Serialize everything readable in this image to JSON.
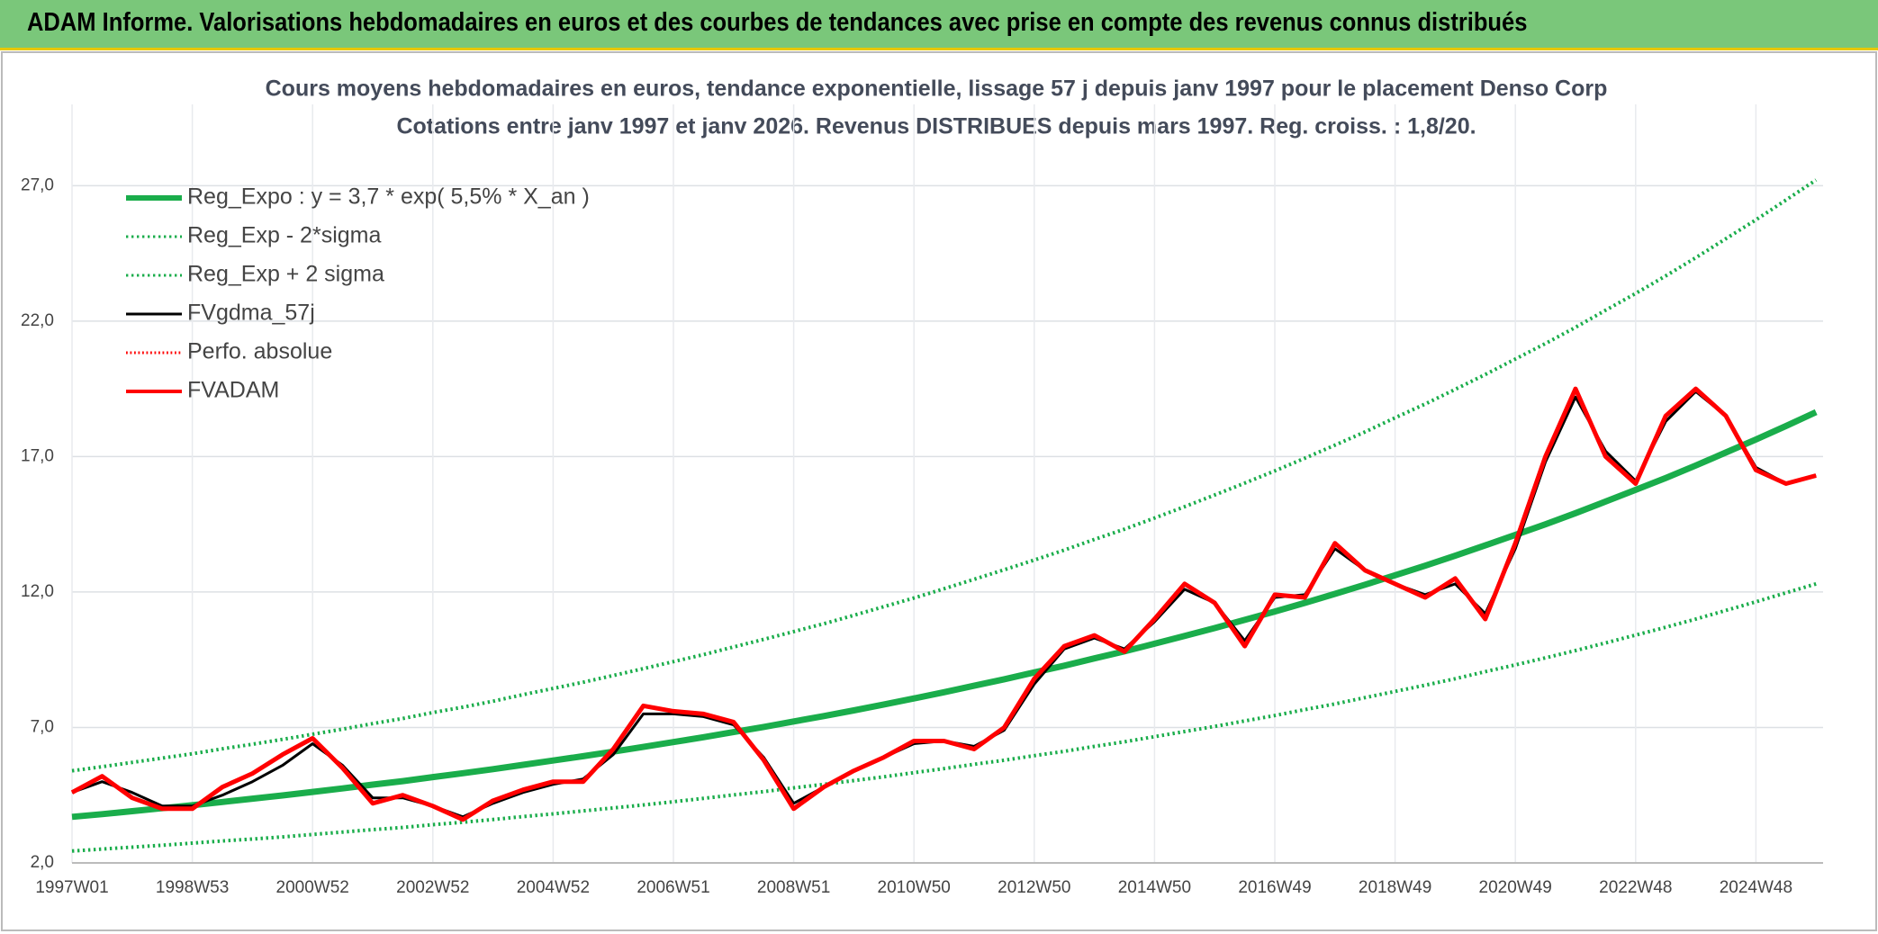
{
  "header": {
    "title": "ADAM Informe. Valorisations hebdomadaires en euros et des courbes de tendances avec prise en compte des revenus connus distribués"
  },
  "chart_data": {
    "type": "line",
    "title": "Cours moyens hebdomadaires en euros, tendance exponentielle, lissage 57 j depuis janv 1997 pour le placement Denso Corp",
    "subtitle": "Cotations entre janv 1997 et janv 2026. Revenus DISTRIBUES depuis mars 1997. Reg. croiss. : 1,8/20.",
    "categories": [
      "1997W01",
      null,
      null,
      null,
      "1998W53",
      null,
      null,
      null,
      "2000W52",
      null,
      null,
      null,
      "2002W52",
      null,
      null,
      null,
      "2004W52",
      null,
      null,
      null,
      "2006W51",
      null,
      null,
      null,
      "2008W51",
      null,
      null,
      null,
      "2010W50",
      null,
      null,
      null,
      "2012W50",
      null,
      null,
      null,
      "2014W50",
      null,
      null,
      null,
      "2016W49",
      null,
      null,
      null,
      "2018W49",
      null,
      null,
      null,
      "2020W49",
      null,
      null,
      null,
      "2022W48",
      null,
      null,
      null,
      "2024W48",
      null,
      null
    ],
    "ylim": [
      2,
      30
    ],
    "yticks": [
      {
        "value": 2,
        "label": "2,0"
      },
      {
        "value": 7,
        "label": "7,0"
      },
      {
        "value": 12,
        "label": "12,0"
      },
      {
        "value": 17,
        "label": "17,0"
      },
      {
        "value": 22,
        "label": "22,0"
      },
      {
        "value": 27,
        "label": "27,0"
      }
    ],
    "grid": true,
    "legend": "top-left",
    "series": [
      {
        "name": "Reg_Expo : y = 3,7 * exp( 5,5% *  X_an )",
        "color": "#1aad4b",
        "style": "solid",
        "width": 7,
        "values": [
          3.7,
          3.8,
          3.91,
          4.02,
          4.13,
          4.25,
          4.37,
          4.49,
          4.62,
          4.75,
          4.89,
          5.02,
          5.17,
          5.31,
          5.46,
          5.62,
          5.78,
          5.94,
          6.11,
          6.28,
          6.46,
          6.64,
          6.83,
          7.02,
          7.22,
          7.42,
          7.63,
          7.85,
          8.07,
          8.3,
          8.54,
          8.78,
          9.03,
          9.28,
          9.55,
          9.81,
          10.09,
          10.38,
          10.67,
          10.97,
          11.28,
          11.6,
          11.93,
          12.27,
          12.62,
          12.97,
          13.34,
          13.72,
          14.11,
          14.5,
          14.91,
          15.34,
          15.77,
          16.21,
          16.67,
          17.15,
          17.63,
          18.13,
          18.64
        ]
      },
      {
        "name": "Reg_Exp - 2*sigma",
        "color": "#1aad4b",
        "style": "dotted",
        "width": 4,
        "values": [
          2.44,
          2.51,
          2.58,
          2.65,
          2.73,
          2.81,
          2.88,
          2.96,
          3.05,
          3.14,
          3.23,
          3.31,
          3.41,
          3.5,
          3.6,
          3.71,
          3.81,
          3.92,
          4.03,
          4.14,
          4.26,
          4.38,
          4.51,
          4.63,
          4.77,
          4.9,
          5.04,
          5.18,
          5.33,
          5.48,
          5.64,
          5.79,
          5.96,
          6.12,
          6.3,
          6.47,
          6.66,
          6.85,
          7.04,
          7.24,
          7.44,
          7.66,
          7.87,
          8.1,
          8.33,
          8.56,
          8.8,
          9.06,
          9.31,
          9.57,
          9.84,
          10.12,
          10.41,
          10.7,
          11.0,
          11.32,
          11.64,
          11.97,
          12.3
        ]
      },
      {
        "name": "Reg_Exp + 2 sigma",
        "color": "#1aad4b",
        "style": "dotted",
        "width": 4,
        "values": [
          5.4,
          5.55,
          5.71,
          5.87,
          6.03,
          6.21,
          6.38,
          6.56,
          6.75,
          6.94,
          7.14,
          7.33,
          7.55,
          7.75,
          7.97,
          8.21,
          8.44,
          8.67,
          8.92,
          9.17,
          9.43,
          9.69,
          9.97,
          10.25,
          10.54,
          10.83,
          11.14,
          11.46,
          11.78,
          12.12,
          12.47,
          12.82,
          13.18,
          13.55,
          13.94,
          14.32,
          14.73,
          15.15,
          15.58,
          16.02,
          16.47,
          16.94,
          17.42,
          17.91,
          18.43,
          18.94,
          19.48,
          20.03,
          20.6,
          21.17,
          21.77,
          22.4,
          23.02,
          23.67,
          24.34,
          25.04,
          25.74,
          26.47,
          27.21
        ]
      },
      {
        "name": "FVgdma_57j",
        "color": "#000000",
        "style": "solid",
        "width": 3,
        "values": [
          4.6,
          5.0,
          4.6,
          4.1,
          4.1,
          4.5,
          5.0,
          5.6,
          6.4,
          5.6,
          4.4,
          4.4,
          4.1,
          3.7,
          4.2,
          4.6,
          4.9,
          5.1,
          6.0,
          7.5,
          7.5,
          7.4,
          7.1,
          5.9,
          4.2,
          4.8,
          5.4,
          5.9,
          6.4,
          6.5,
          6.3,
          6.9,
          8.6,
          9.9,
          10.3,
          9.9,
          10.9,
          12.1,
          11.6,
          10.2,
          11.8,
          11.9,
          13.6,
          12.8,
          12.3,
          11.9,
          12.3,
          11.2,
          13.6,
          16.8,
          19.2,
          17.2,
          16.1,
          18.3,
          19.4,
          18.5,
          16.6,
          16.0,
          16.3
        ]
      },
      {
        "name": "Perfo. absolue",
        "color": "#ff0000",
        "style": "dotted",
        "width": 3,
        "values": [
          4.6,
          5.2,
          4.4,
          4.0,
          4.0,
          4.8,
          5.3,
          6.0,
          6.6,
          5.5,
          4.2,
          4.5,
          4.1,
          3.6,
          4.3,
          4.7,
          5.0,
          5.0,
          6.2,
          7.8,
          7.6,
          7.5,
          7.2,
          5.8,
          4.0,
          4.8,
          5.4,
          5.9,
          6.5,
          6.5,
          6.2,
          7.0,
          8.8,
          10.0,
          10.4,
          9.8,
          11.0,
          12.3,
          11.6,
          10.0,
          11.9,
          11.8,
          13.8,
          12.8,
          12.3,
          11.8,
          12.5,
          11.0,
          13.8,
          17.0,
          19.5,
          17.0,
          16.0,
          18.5,
          19.5,
          18.5,
          16.5,
          16.0,
          16.3
        ]
      },
      {
        "name": "FVADAM",
        "color": "#ff0000",
        "style": "solid",
        "width": 5,
        "values": [
          4.6,
          5.2,
          4.4,
          4.0,
          4.0,
          4.8,
          5.3,
          6.0,
          6.6,
          5.5,
          4.2,
          4.5,
          4.1,
          3.6,
          4.3,
          4.7,
          5.0,
          5.0,
          6.2,
          7.8,
          7.6,
          7.5,
          7.2,
          5.8,
          4.0,
          4.8,
          5.4,
          5.9,
          6.5,
          6.5,
          6.2,
          7.0,
          8.8,
          10.0,
          10.4,
          9.8,
          11.0,
          12.3,
          11.6,
          10.0,
          11.9,
          11.8,
          13.8,
          12.8,
          12.3,
          11.8,
          12.5,
          11.0,
          13.8,
          17.0,
          19.5,
          17.0,
          16.0,
          18.5,
          19.5,
          18.5,
          16.5,
          16.0,
          16.3
        ]
      }
    ]
  }
}
